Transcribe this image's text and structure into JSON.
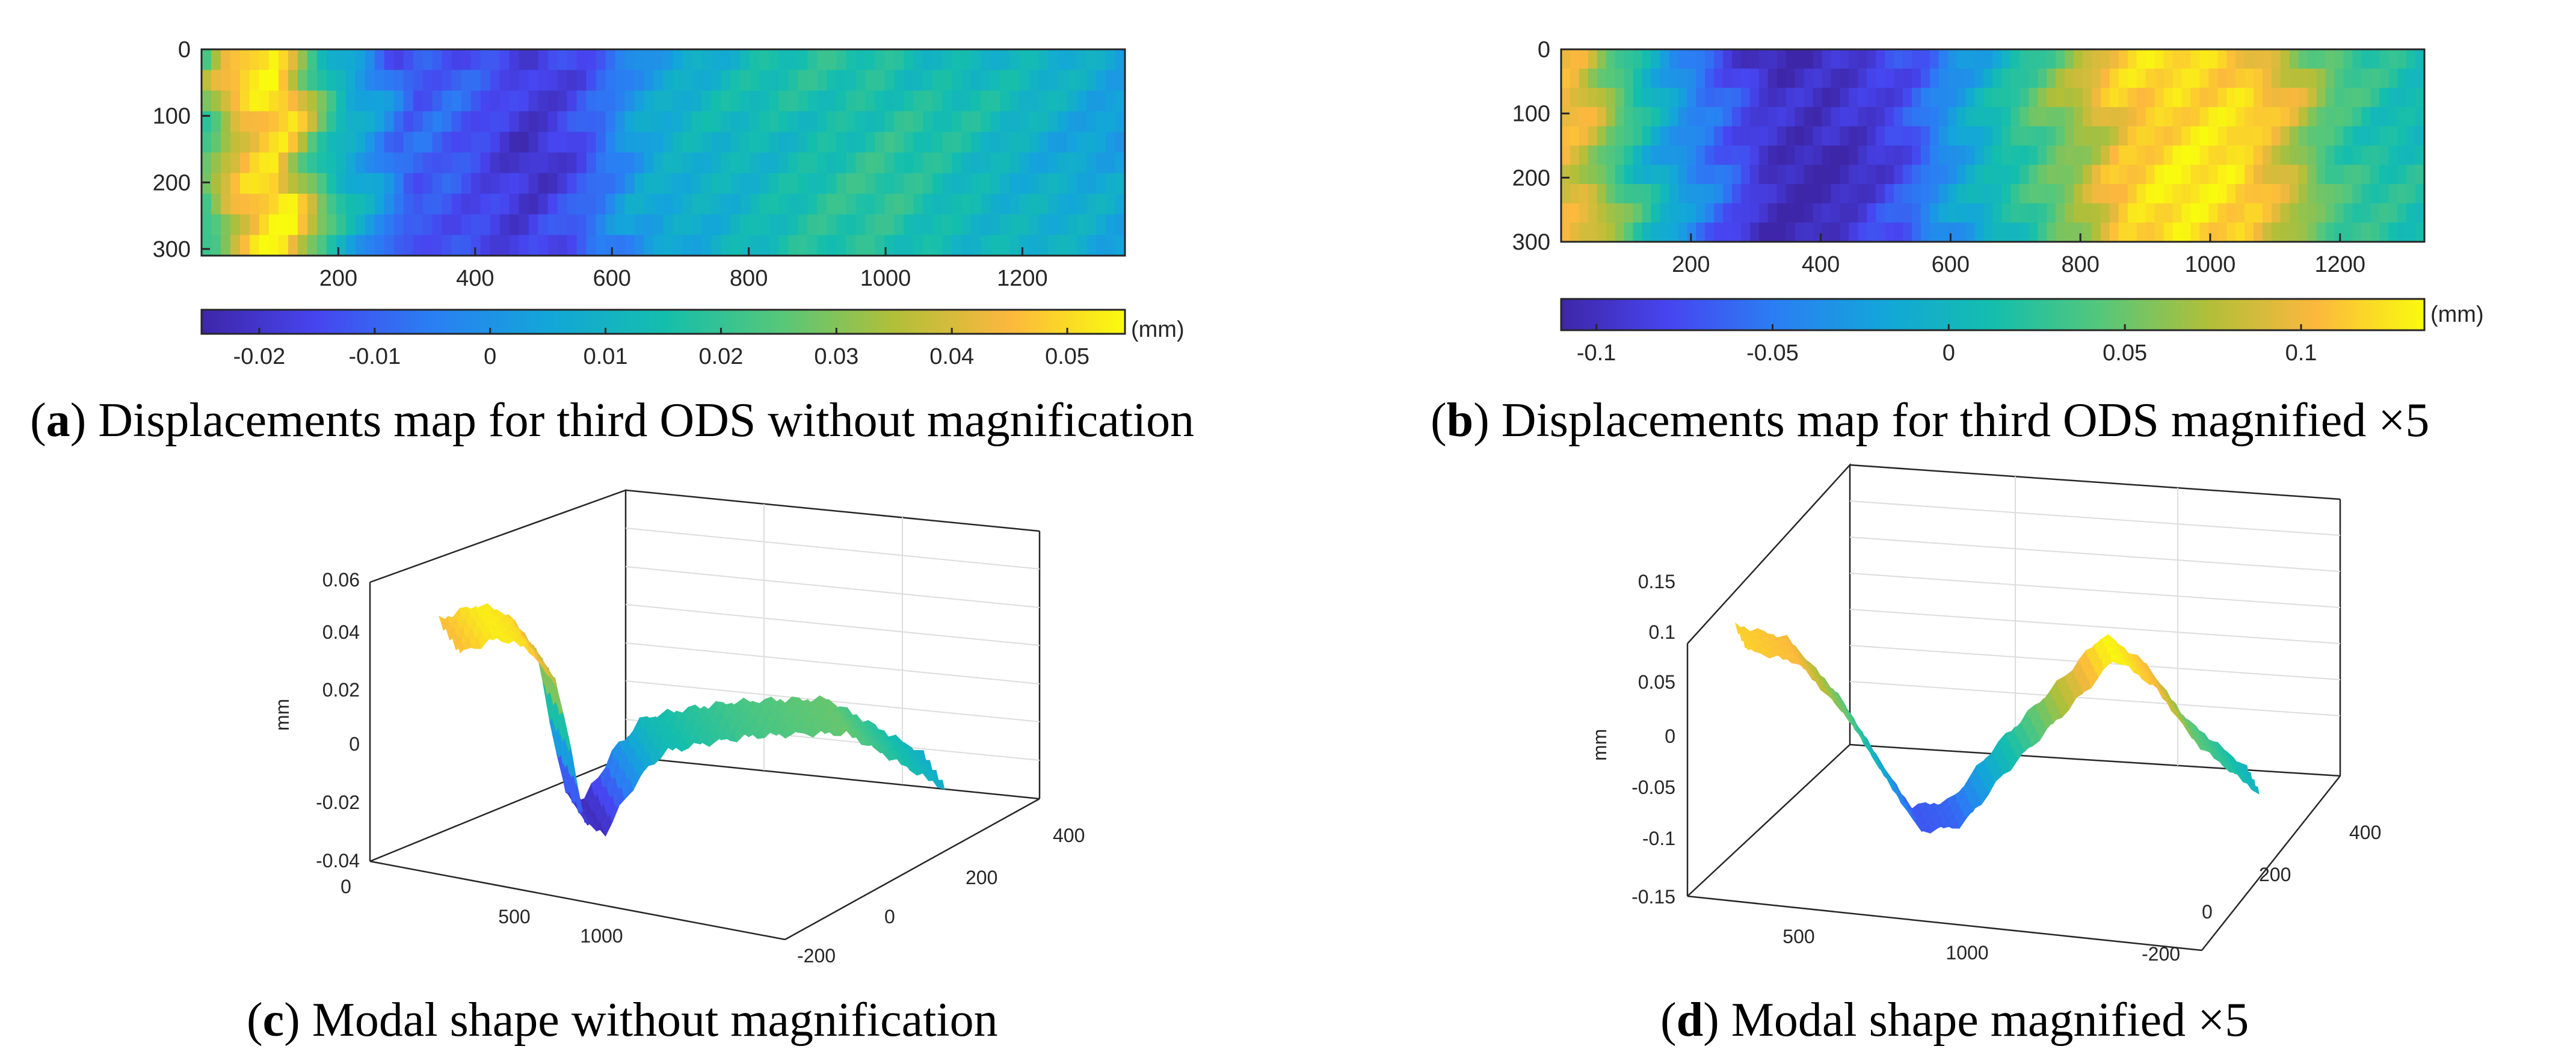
{
  "chart_data": [
    {
      "id": "a",
      "type": "heatmap",
      "caption": {
        "letter": "a",
        "text": " Displacements map for third ODS without magnification"
      },
      "x_ticks": [
        "200",
        "400",
        "600",
        "800",
        "1000",
        "1200"
      ],
      "x_tick_values": [
        200,
        400,
        600,
        800,
        1000,
        1200
      ],
      "xlim": [
        0,
        1350
      ],
      "y_ticks": [
        "0",
        "100",
        "200",
        "300"
      ],
      "y_tick_values": [
        0,
        100,
        200,
        300
      ],
      "ylim": [
        0,
        310
      ],
      "colorbar": {
        "unit": "(mm)",
        "ticks": [
          "-0.02",
          "-0.01",
          "0",
          "0.01",
          "0.02",
          "0.03",
          "0.04",
          "0.05"
        ],
        "tick_values": [
          -0.02,
          -0.01,
          0,
          0.01,
          0.02,
          0.03,
          0.04,
          0.05
        ],
        "range": [
          -0.025,
          0.055
        ]
      },
      "profile_x": [
        0,
        40,
        80,
        120,
        160,
        200,
        260,
        300,
        350,
        420,
        480,
        540,
        600,
        640,
        700,
        800,
        900,
        1000,
        1100,
        1200,
        1300,
        1350
      ],
      "profile_value": [
        0.02,
        0.04,
        0.05,
        0.052,
        0.03,
        0.012,
        0.0,
        -0.012,
        -0.01,
        -0.015,
        -0.02,
        -0.015,
        -0.005,
        0.004,
        0.008,
        0.012,
        0.016,
        0.018,
        0.014,
        0.01,
        0.006,
        0.004
      ]
    },
    {
      "id": "b",
      "type": "heatmap",
      "caption": {
        "letter": "b",
        "text": " Displacements map for third ODS magnified ×5"
      },
      "x_ticks": [
        "200",
        "400",
        "600",
        "800",
        "1000",
        "1200"
      ],
      "x_tick_values": [
        200,
        400,
        600,
        800,
        1000,
        1200
      ],
      "xlim": [
        0,
        1330
      ],
      "y_ticks": [
        "0",
        "100",
        "200",
        "300"
      ],
      "y_tick_values": [
        0,
        100,
        200,
        300
      ],
      "ylim": [
        0,
        300
      ],
      "colorbar": {
        "unit": "(mm)",
        "ticks": [
          "-0.1",
          "-0.05",
          "0",
          "0.05",
          "0.1"
        ],
        "tick_values": [
          -0.1,
          -0.05,
          0,
          0.05,
          0.1
        ],
        "range": [
          -0.11,
          0.135
        ]
      },
      "profile_x": [
        0,
        40,
        80,
        140,
        200,
        260,
        320,
        400,
        480,
        540,
        600,
        700,
        800,
        860,
        950,
        1050,
        1130,
        1180,
        1250,
        1330
      ],
      "profile_value": [
        0.1,
        0.09,
        0.05,
        0.0,
        -0.04,
        -0.07,
        -0.1,
        -0.105,
        -0.09,
        -0.07,
        -0.03,
        0.02,
        0.07,
        0.11,
        0.125,
        0.12,
        0.08,
        0.04,
        0.02,
        0.01
      ]
    },
    {
      "id": "c",
      "type": "surface",
      "caption": {
        "letter": "c",
        "text": " Modal shape without magnification"
      },
      "z_label": "mm",
      "z_ticks": [
        "0.06",
        "0.04",
        "0.02",
        "0",
        "-0.02",
        "-0.04"
      ],
      "z_tick_values": [
        0.06,
        0.04,
        0.02,
        0,
        -0.02,
        -0.04
      ],
      "x_ticks": [
        "0",
        "500",
        "1000"
      ],
      "y_ticks": [
        "400",
        "200",
        "0",
        "-200"
      ],
      "profile_x": [
        0,
        0.08,
        0.14,
        0.2,
        0.26,
        0.3,
        0.36,
        0.42,
        0.5,
        0.6,
        0.7,
        0.8,
        0.9,
        1.0
      ],
      "profile_value": [
        0.05,
        0.058,
        0.055,
        0.04,
        -0.02,
        -0.022,
        0.0,
        0.015,
        0.02,
        0.025,
        0.028,
        0.03,
        0.02,
        0.01
      ]
    },
    {
      "id": "d",
      "type": "surface",
      "caption": {
        "letter": "d",
        "text": " Modal shape magnified ×5"
      },
      "z_label": "mm",
      "z_ticks": [
        "0.15",
        "0.1",
        "0.05",
        "0",
        "-0.05",
        "-0.1",
        "-0.15"
      ],
      "z_tick_values": [
        0.15,
        0.1,
        0.05,
        0,
        -0.05,
        -0.1,
        -0.15
      ],
      "x_ticks": [
        "500",
        "1000"
      ],
      "y_ticks": [
        "400",
        "200",
        "0",
        "-200"
      ],
      "profile_x": [
        0,
        0.1,
        0.2,
        0.28,
        0.34,
        0.42,
        0.5,
        0.58,
        0.66,
        0.72,
        0.8,
        0.88,
        1.0
      ],
      "profile_value": [
        0.12,
        0.11,
        0.05,
        -0.02,
        -0.07,
        -0.06,
        0.0,
        0.05,
        0.1,
        0.14,
        0.11,
        0.05,
        0.0
      ]
    }
  ]
}
